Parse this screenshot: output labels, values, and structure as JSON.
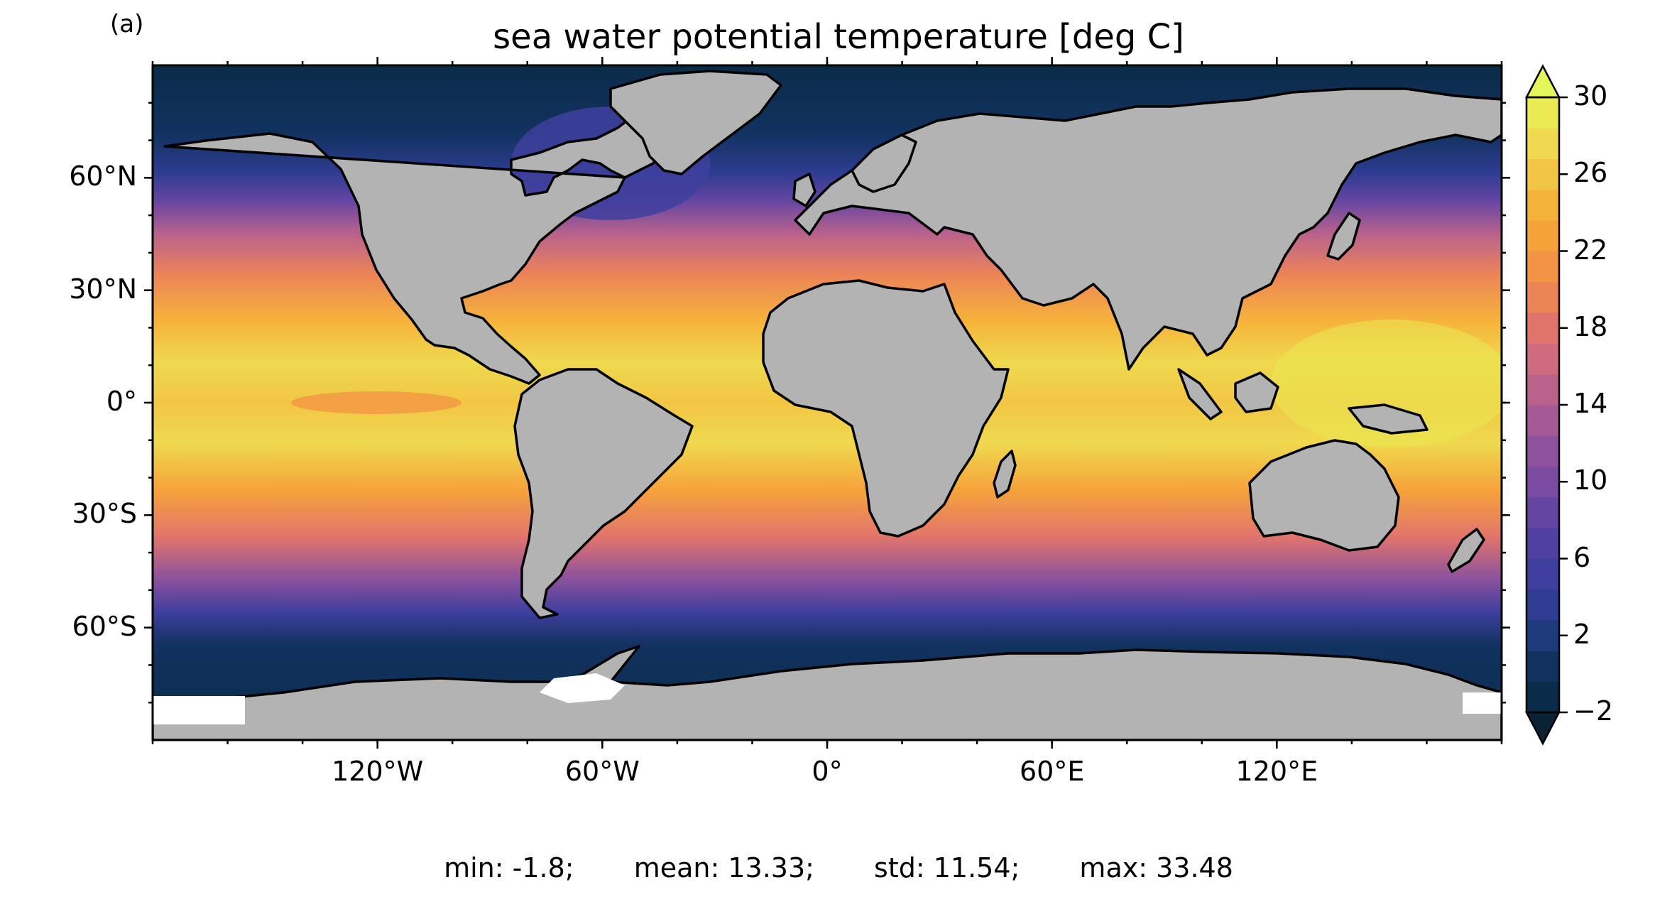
{
  "panel_label": "(a)",
  "title": "sea water potential temperature [deg C]",
  "map": {
    "projection": "plate-carree",
    "lon_range": [
      -180,
      180
    ],
    "lat_range": [
      -90,
      90
    ],
    "lat_ticks": [
      {
        "value": 60,
        "label": "60°N"
      },
      {
        "value": 30,
        "label": "30°N"
      },
      {
        "value": 0,
        "label": "0°"
      },
      {
        "value": -30,
        "label": "30°S"
      },
      {
        "value": -60,
        "label": "60°S"
      }
    ],
    "lon_ticks": [
      {
        "value": -120,
        "label": "120°W"
      },
      {
        "value": -60,
        "label": "60°W"
      },
      {
        "value": 0,
        "label": "0°"
      },
      {
        "value": 60,
        "label": "60°E"
      },
      {
        "value": 120,
        "label": "120°E"
      }
    ],
    "land_color": "#b3b3b3",
    "missing_color": "#ffffff"
  },
  "colorbar": {
    "min": -2,
    "max": 30,
    "step": 2,
    "extend": "both",
    "tick_labels": [
      "30",
      "26",
      "22",
      "18",
      "14",
      "10",
      "6",
      "2",
      "−2"
    ],
    "tick_values": [
      30,
      26,
      22,
      18,
      14,
      10,
      6,
      2,
      -2
    ],
    "colors": [
      "#0b2b4a",
      "#11325f",
      "#1f3a7d",
      "#2e3c92",
      "#3e3f9e",
      "#5040a2",
      "#6445a2",
      "#7a4ba0",
      "#8e529c",
      "#a45a95",
      "#b9628c",
      "#cf6b7e",
      "#e0746d",
      "#ec8458",
      "#f39346",
      "#f6a23b",
      "#f6b33b",
      "#f2c644",
      "#efd94e",
      "#eaea52"
    ],
    "over_color": "#e6f55a",
    "under_color": "#0a2236"
  },
  "stats": {
    "min": "min: -1.8;",
    "mean": "mean: 13.33;",
    "std": "std: 11.54;",
    "max": "max: 33.48"
  }
}
